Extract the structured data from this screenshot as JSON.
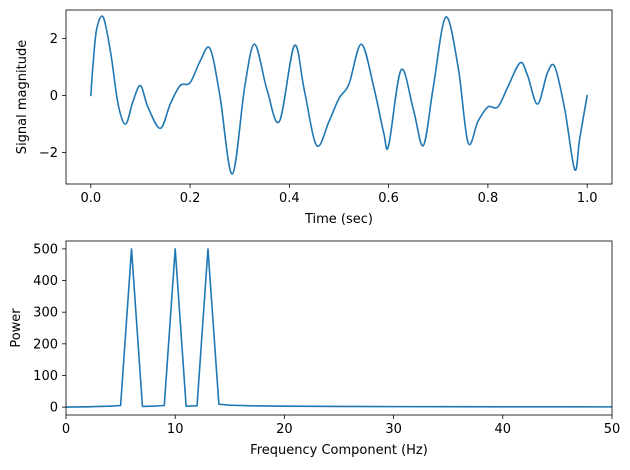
{
  "colors": {
    "series": "#1f77b4",
    "axes": "#000000",
    "background": "#ffffff"
  },
  "chart_data": [
    {
      "type": "line",
      "title": "",
      "xlabel": "Time (sec)",
      "ylabel": "Signal magnitude",
      "xlim": [
        -0.05,
        1.05
      ],
      "ylim": [
        -3.1,
        3.0
      ],
      "grid": false,
      "xticks": [
        0.0,
        0.2,
        0.4,
        0.6,
        0.8,
        1.0
      ],
      "xtick_labels": [
        "0.0",
        "0.2",
        "0.4",
        "0.6",
        "0.8",
        "1.0"
      ],
      "yticks": [
        -2,
        0,
        2
      ],
      "ytick_labels": [
        "−2",
        "0",
        "2"
      ],
      "series": [
        {
          "x": [
            0.0,
            0.005,
            0.012,
            0.025,
            0.04,
            0.055,
            0.07,
            0.085,
            0.1,
            0.115,
            0.14,
            0.16,
            0.18,
            0.2,
            0.22,
            0.24,
            0.26,
            0.285,
            0.31,
            0.33,
            0.355,
            0.38,
            0.41,
            0.43,
            0.455,
            0.48,
            0.5,
            0.52,
            0.545,
            0.57,
            0.59,
            0.6,
            0.625,
            0.65,
            0.67,
            0.69,
            0.715,
            0.74,
            0.76,
            0.78,
            0.8,
            0.82,
            0.84,
            0.865,
            0.88,
            0.9,
            0.92,
            0.935,
            0.955,
            0.975,
            0.985,
            1.0
          ],
          "y": [
            0.0,
            1.2,
            2.35,
            2.75,
            1.5,
            -0.3,
            -1.0,
            -0.2,
            0.35,
            -0.4,
            -1.15,
            -0.3,
            0.35,
            0.45,
            1.2,
            1.65,
            0.0,
            -2.75,
            0.3,
            1.8,
            0.2,
            -0.9,
            1.75,
            0.2,
            -1.75,
            -0.9,
            -0.1,
            0.4,
            1.8,
            0.3,
            -1.3,
            -1.75,
            0.9,
            -0.5,
            -1.75,
            0.3,
            2.75,
            1.0,
            -1.65,
            -0.9,
            -0.4,
            -0.4,
            0.3,
            1.15,
            0.7,
            -0.3,
            0.8,
            1.0,
            -0.5,
            -2.6,
            -1.5,
            0.0
          ]
        }
      ]
    },
    {
      "type": "line",
      "title": "",
      "xlabel": "Frequency Component (Hz)",
      "ylabel": "Power",
      "xlim": [
        0,
        50
      ],
      "ylim": [
        -25,
        525
      ],
      "grid": false,
      "xticks": [
        0,
        10,
        20,
        30,
        40,
        50
      ],
      "xtick_labels": [
        "0",
        "10",
        "20",
        "30",
        "40",
        "50"
      ],
      "yticks": [
        0,
        100,
        200,
        300,
        400,
        500
      ],
      "ytick_labels": [
        "0",
        "100",
        "200",
        "300",
        "400",
        "500"
      ],
      "series": [
        {
          "x": [
            0,
            1,
            2,
            3,
            4,
            5,
            6,
            7,
            8,
            9,
            10,
            11,
            12,
            13,
            14,
            15,
            16,
            17,
            18,
            20,
            25,
            30,
            35,
            40,
            45,
            50
          ],
          "y": [
            0,
            0.5,
            1,
            2,
            3,
            5,
            500,
            2,
            3,
            5,
            500,
            3,
            4,
            500,
            9,
            6,
            5,
            4,
            3.5,
            3,
            2,
            1.5,
            1.2,
            1,
            0.8,
            0.7
          ]
        }
      ]
    }
  ]
}
